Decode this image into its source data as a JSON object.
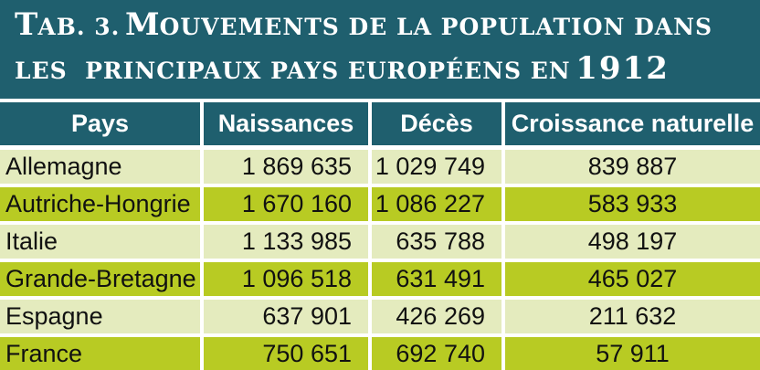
{
  "title": {
    "tab_prefix_cap": "T",
    "tab_prefix_rest": "AB. 3.",
    "line1_cap": "M",
    "line1_rest": "OUVEMENTS DE LA POPULATION DANS",
    "line2_text": "LES  PRINCIPAUX PAYS EUROPÉENS EN",
    "year": "1912"
  },
  "table": {
    "headers": [
      "Pays",
      "Naissances",
      "Décès",
      "Croissance naturelle"
    ],
    "rows": [
      [
        "Allemagne",
        "1 869 635",
        "1 029 749",
        "839 887"
      ],
      [
        "Autriche-Hongrie",
        "1 670 160",
        "1 086 227",
        "583 933"
      ],
      [
        "Italie",
        "1 133 985",
        "635 788",
        "498 197"
      ],
      [
        "Grande-Bretagne",
        "1 096 518",
        "631 491",
        "465 027"
      ],
      [
        "Espagne",
        "637 901",
        "426 269",
        "211 632"
      ],
      [
        "France",
        "750 651",
        "692 740",
        "57 911"
      ]
    ]
  },
  "colors": {
    "header_bg": "#1f5f6e",
    "row_light": "#e4ebbe",
    "row_dark": "#b8cb23"
  }
}
